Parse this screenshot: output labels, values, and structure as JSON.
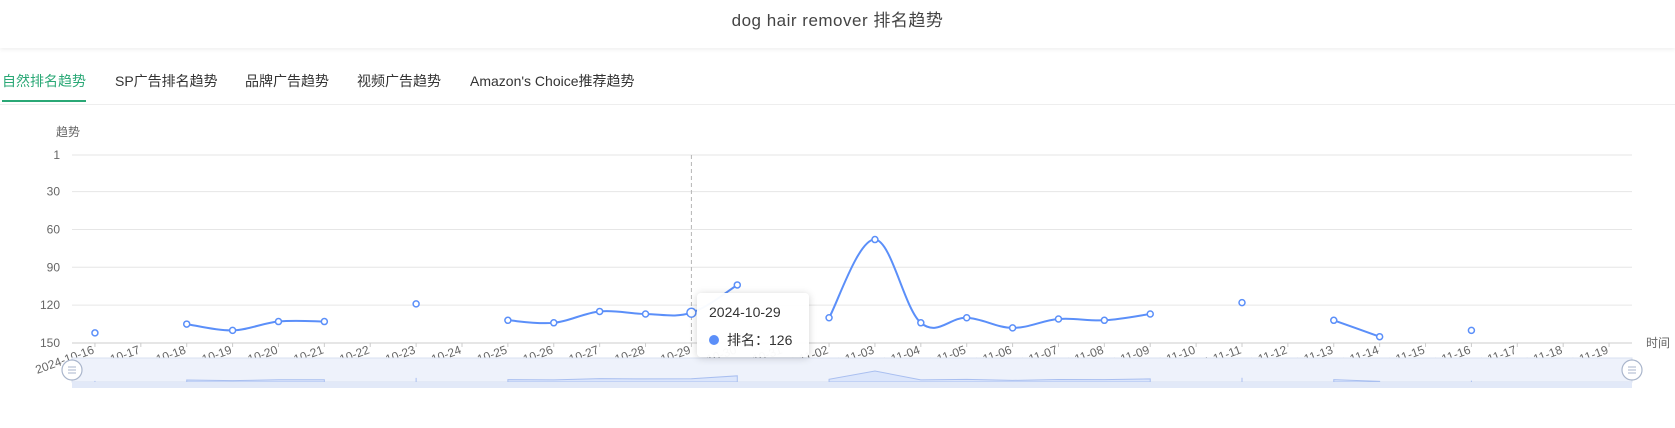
{
  "page": {
    "title": "dog hair remover 排名趋势"
  },
  "tabs": [
    {
      "label": "自然排名趋势",
      "active": true
    },
    {
      "label": "SP广告排名趋势",
      "active": false
    },
    {
      "label": "品牌广告趋势",
      "active": false
    },
    {
      "label": "视频广告趋势",
      "active": false
    },
    {
      "label": "Amazon's Choice推荐趋势",
      "active": false
    }
  ],
  "tooltip": {
    "date": "2024-10-29",
    "series_label": "排名：",
    "value": "126"
  },
  "colors": {
    "accent": "#2aa876",
    "line": "#5b8ff9",
    "zoom_fill": "#dce6fb"
  },
  "chart_data": {
    "type": "line",
    "ylabel": "趋势",
    "xlabel": "时间",
    "y_inverted": true,
    "ylim": [
      1,
      150
    ],
    "yticks": [
      1,
      30,
      60,
      90,
      120,
      150
    ],
    "grid": true,
    "legend": "none",
    "categories": [
      "2024-10-16",
      "2024-10-17",
      "2024-10-18",
      "2024-10-19",
      "2024-10-20",
      "2024-10-21",
      "2024-10-22",
      "2024-10-23",
      "2024-10-24",
      "2024-10-25",
      "2024-10-26",
      "2024-10-27",
      "2024-10-28",
      "2024-10-29",
      "2024-10-30",
      "2024-10-31",
      "2024-11-02",
      "2024-11-03",
      "2024-11-04",
      "2024-11-05",
      "2024-11-06",
      "2024-11-07",
      "2024-11-08",
      "2024-11-09",
      "2024-11-10",
      "2024-11-11",
      "2024-11-12",
      "2024-11-13",
      "2024-11-14",
      "2024-11-15",
      "2024-11-16",
      "2024-11-17",
      "2024-11-18",
      "2024-11-19"
    ],
    "series": [
      {
        "name": "排名",
        "values": [
          142,
          null,
          135,
          140,
          133,
          133,
          null,
          119,
          null,
          132,
          134,
          125,
          127,
          126,
          104,
          null,
          130,
          68,
          134,
          130,
          138,
          131,
          132,
          127,
          null,
          118,
          null,
          132,
          145,
          null,
          140,
          null,
          null,
          null
        ]
      }
    ],
    "highlight_index": 13
  }
}
